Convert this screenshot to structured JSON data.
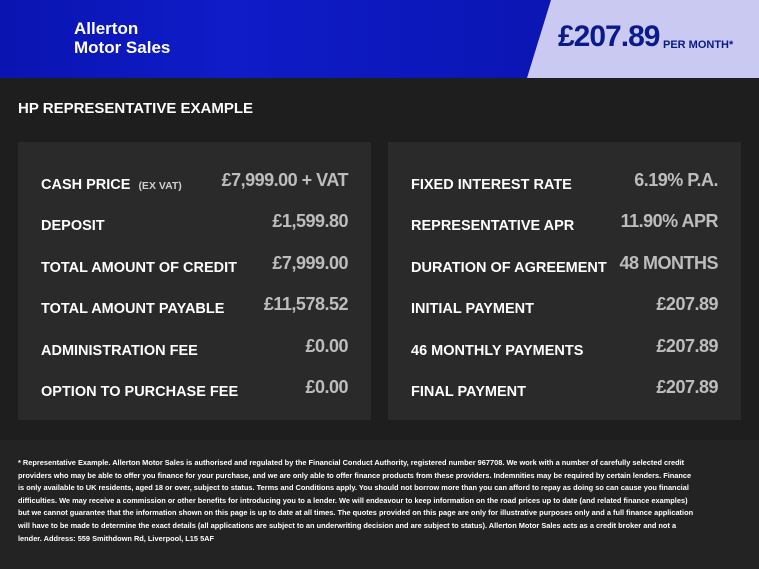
{
  "header": {
    "logo": [
      "Allerton",
      "Motor Sales"
    ],
    "price": "£207.89",
    "price_suffix": "PER MONTH*"
  },
  "section_title": "HP REPRESENTATIVE EXAMPLE",
  "left_panel": {
    "rows": [
      {
        "label": "CASH PRICE",
        "note": "(EX VAT)",
        "value": "£7,999.00 + VAT"
      },
      {
        "label": "DEPOSIT",
        "value": "£1,599.80"
      },
      {
        "label": "TOTAL AMOUNT OF CREDIT",
        "value": "£7,999.00"
      },
      {
        "label": "TOTAL AMOUNT PAYABLE",
        "value": "£11,578.52"
      },
      {
        "label": "ADMINISTRATION FEE",
        "value": "£0.00"
      },
      {
        "label": "OPTION TO PURCHASE FEE",
        "value": "£0.00"
      }
    ]
  },
  "right_panel": {
    "rows": [
      {
        "label": "FIXED INTEREST RATE",
        "value": "6.19% P.A."
      },
      {
        "label": "REPRESENTATIVE APR",
        "value": "11.90% APR"
      },
      {
        "label": "DURATION OF AGREEMENT",
        "value": "48 MONTHS"
      },
      {
        "label": "INITIAL PAYMENT",
        "value": "£207.89"
      },
      {
        "label": "46 MONTHLY PAYMENTS",
        "value": "£207.89"
      },
      {
        "label": "FINAL PAYMENT",
        "value": "£207.89"
      }
    ]
  },
  "footnote": "* Representative Example. Allerton Motor Sales is authorised and regulated by the Financial Conduct Authority, registered number 967708. We work with a number of carefully selected credit providers who may be able to offer you finance for your purchase, and we are only able to offer finance products from these providers. Indemnities may be required by certain lenders. Finance is only available to UK residents, aged 18 or over, subject to status. Terms and Conditions apply. You should not borrow more than you can afford to repay as doing so can cause you financial difficulties. We may receive a commission or other benefits for introducing you to a lender. We will endeavour to keep information on the road prices up to date (and related finance examples) but we cannot guarantee that the information shown on this page is up to date at all times. The quotes provided on this page are only for illustrative purposes only and a full finance application will have to be made to determine the exact details (all applications are subject to an underwriting decision and are subject to status). Allerton Motor Sales acts as a credit broker and not a lender. Address: 559 Smithdown Rd, Liverpool, L15 5AF"
}
